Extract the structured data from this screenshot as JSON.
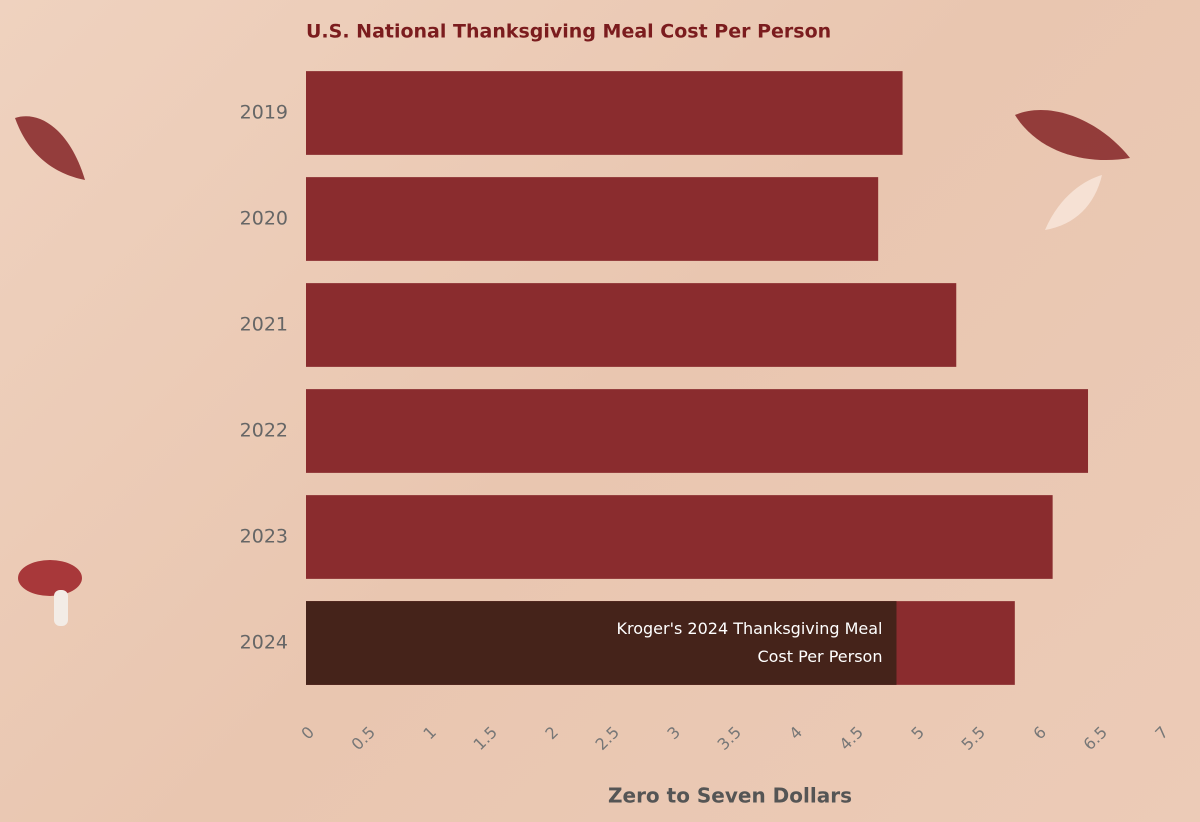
{
  "chart_data": {
    "type": "bar",
    "orientation": "horizontal",
    "title": "U.S. National Thanksgiving Meal Cost Per Person",
    "xlabel": "Zero to Seven Dollars",
    "categories": [
      "2019",
      "2020",
      "2021",
      "2022",
      "2023",
      "2024"
    ],
    "values": [
      4.89,
      4.69,
      5.33,
      6.41,
      6.12,
      5.81
    ],
    "color": "#8a2c2e",
    "xlim": [
      0,
      7
    ],
    "xticks": [
      0,
      0.5,
      1,
      1.5,
      2,
      2.5,
      3,
      3.5,
      4,
      4.5,
      5,
      5.5,
      6,
      6.5,
      7
    ],
    "grid": false,
    "annotations": [
      {
        "text": "Kroger's 2024 Thanksgiving Meal Cost Per Person",
        "category": "2024",
        "value": 4.84,
        "color": "#45231a"
      }
    ]
  }
}
